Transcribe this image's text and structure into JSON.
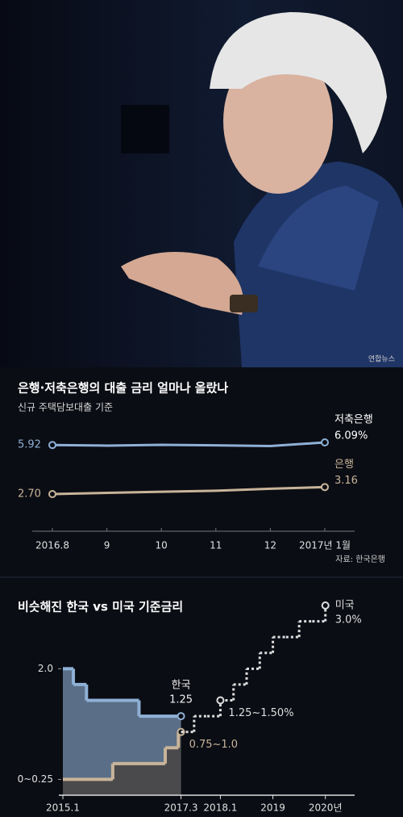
{
  "photo_credit": "연합뉴스",
  "chart_data": [
    {
      "type": "line",
      "title": "은행·저축은행의 대출 금리 얼마나 올랐나",
      "subtitle": "신규 주택담보대출 기준",
      "source": "자료: 한국은행",
      "categories": [
        "2016.8",
        "9",
        "10",
        "11",
        "12",
        "2017년 1월"
      ],
      "series": [
        {
          "name": "저축은행",
          "color": "#8fb0d6",
          "values": [
            5.92,
            5.88,
            5.93,
            5.9,
            5.85,
            6.09
          ],
          "value_labels": [
            "5.92",
            null,
            null,
            null,
            null,
            "6.09%"
          ]
        },
        {
          "name": "은행",
          "color": "#c8b49a",
          "values": [
            2.7,
            2.78,
            2.85,
            2.92,
            3.05,
            3.16
          ],
          "value_labels": [
            "2.70",
            null,
            null,
            null,
            null,
            "3.16"
          ]
        }
      ]
    },
    {
      "type": "step",
      "title": "비슷해진 한국 vs 미국 기준금리",
      "xlim": [
        2015,
        2020.25
      ],
      "xticks": [
        {
          "value": 2015,
          "label": "2015.1"
        },
        {
          "value": 2017.25,
          "label": "2017.3"
        },
        {
          "value": 2018,
          "label": "2018.1"
        },
        2019,
        {
          "value": 2020,
          "label": "2020년"
        }
      ],
      "ylim": [
        0,
        3
      ],
      "yticks": [
        {
          "value": 0.25,
          "label": "0~0.25"
        },
        {
          "value": 2,
          "label": "2.0"
        }
      ],
      "series": [
        {
          "name": "한국",
          "color": "#8fb0d6",
          "fill": "#5a6f87",
          "x": [
            2015,
            2015.2,
            2015.45,
            2016.45,
            2017.25
          ],
          "values": [
            2,
            1.75,
            1.5,
            1.25,
            1.25
          ],
          "value_labels": [
            null,
            null,
            null,
            null,
            "1.25"
          ]
        },
        {
          "color": "#c8b49a",
          "fill": "#4a4a4c",
          "x": [
            2015,
            2015.95,
            2016.95,
            2017.2,
            2017.25
          ],
          "values": [
            0.25,
            0.5,
            0.75,
            1,
            1
          ],
          "value_labels": [
            null,
            null,
            null,
            null,
            "0.75~1.0"
          ]
        },
        {
          "name": "미국",
          "color": "#dddddd",
          "dashed": true,
          "x": [
            2017.25,
            2017.5,
            2017.75,
            2018,
            2018.25,
            2018.5,
            2018.75,
            2019,
            2019.25,
            2019.5,
            2019.75,
            2020
          ],
          "values": [
            1,
            1.25,
            1.25,
            1.5,
            1.75,
            2,
            2.25,
            2.5,
            2.5,
            2.75,
            2.75,
            3
          ],
          "value_labels": [
            null,
            null,
            null,
            "1.25~1.50%",
            null,
            null,
            null,
            null,
            null,
            null,
            null,
            "3.0%"
          ]
        }
      ]
    }
  ]
}
